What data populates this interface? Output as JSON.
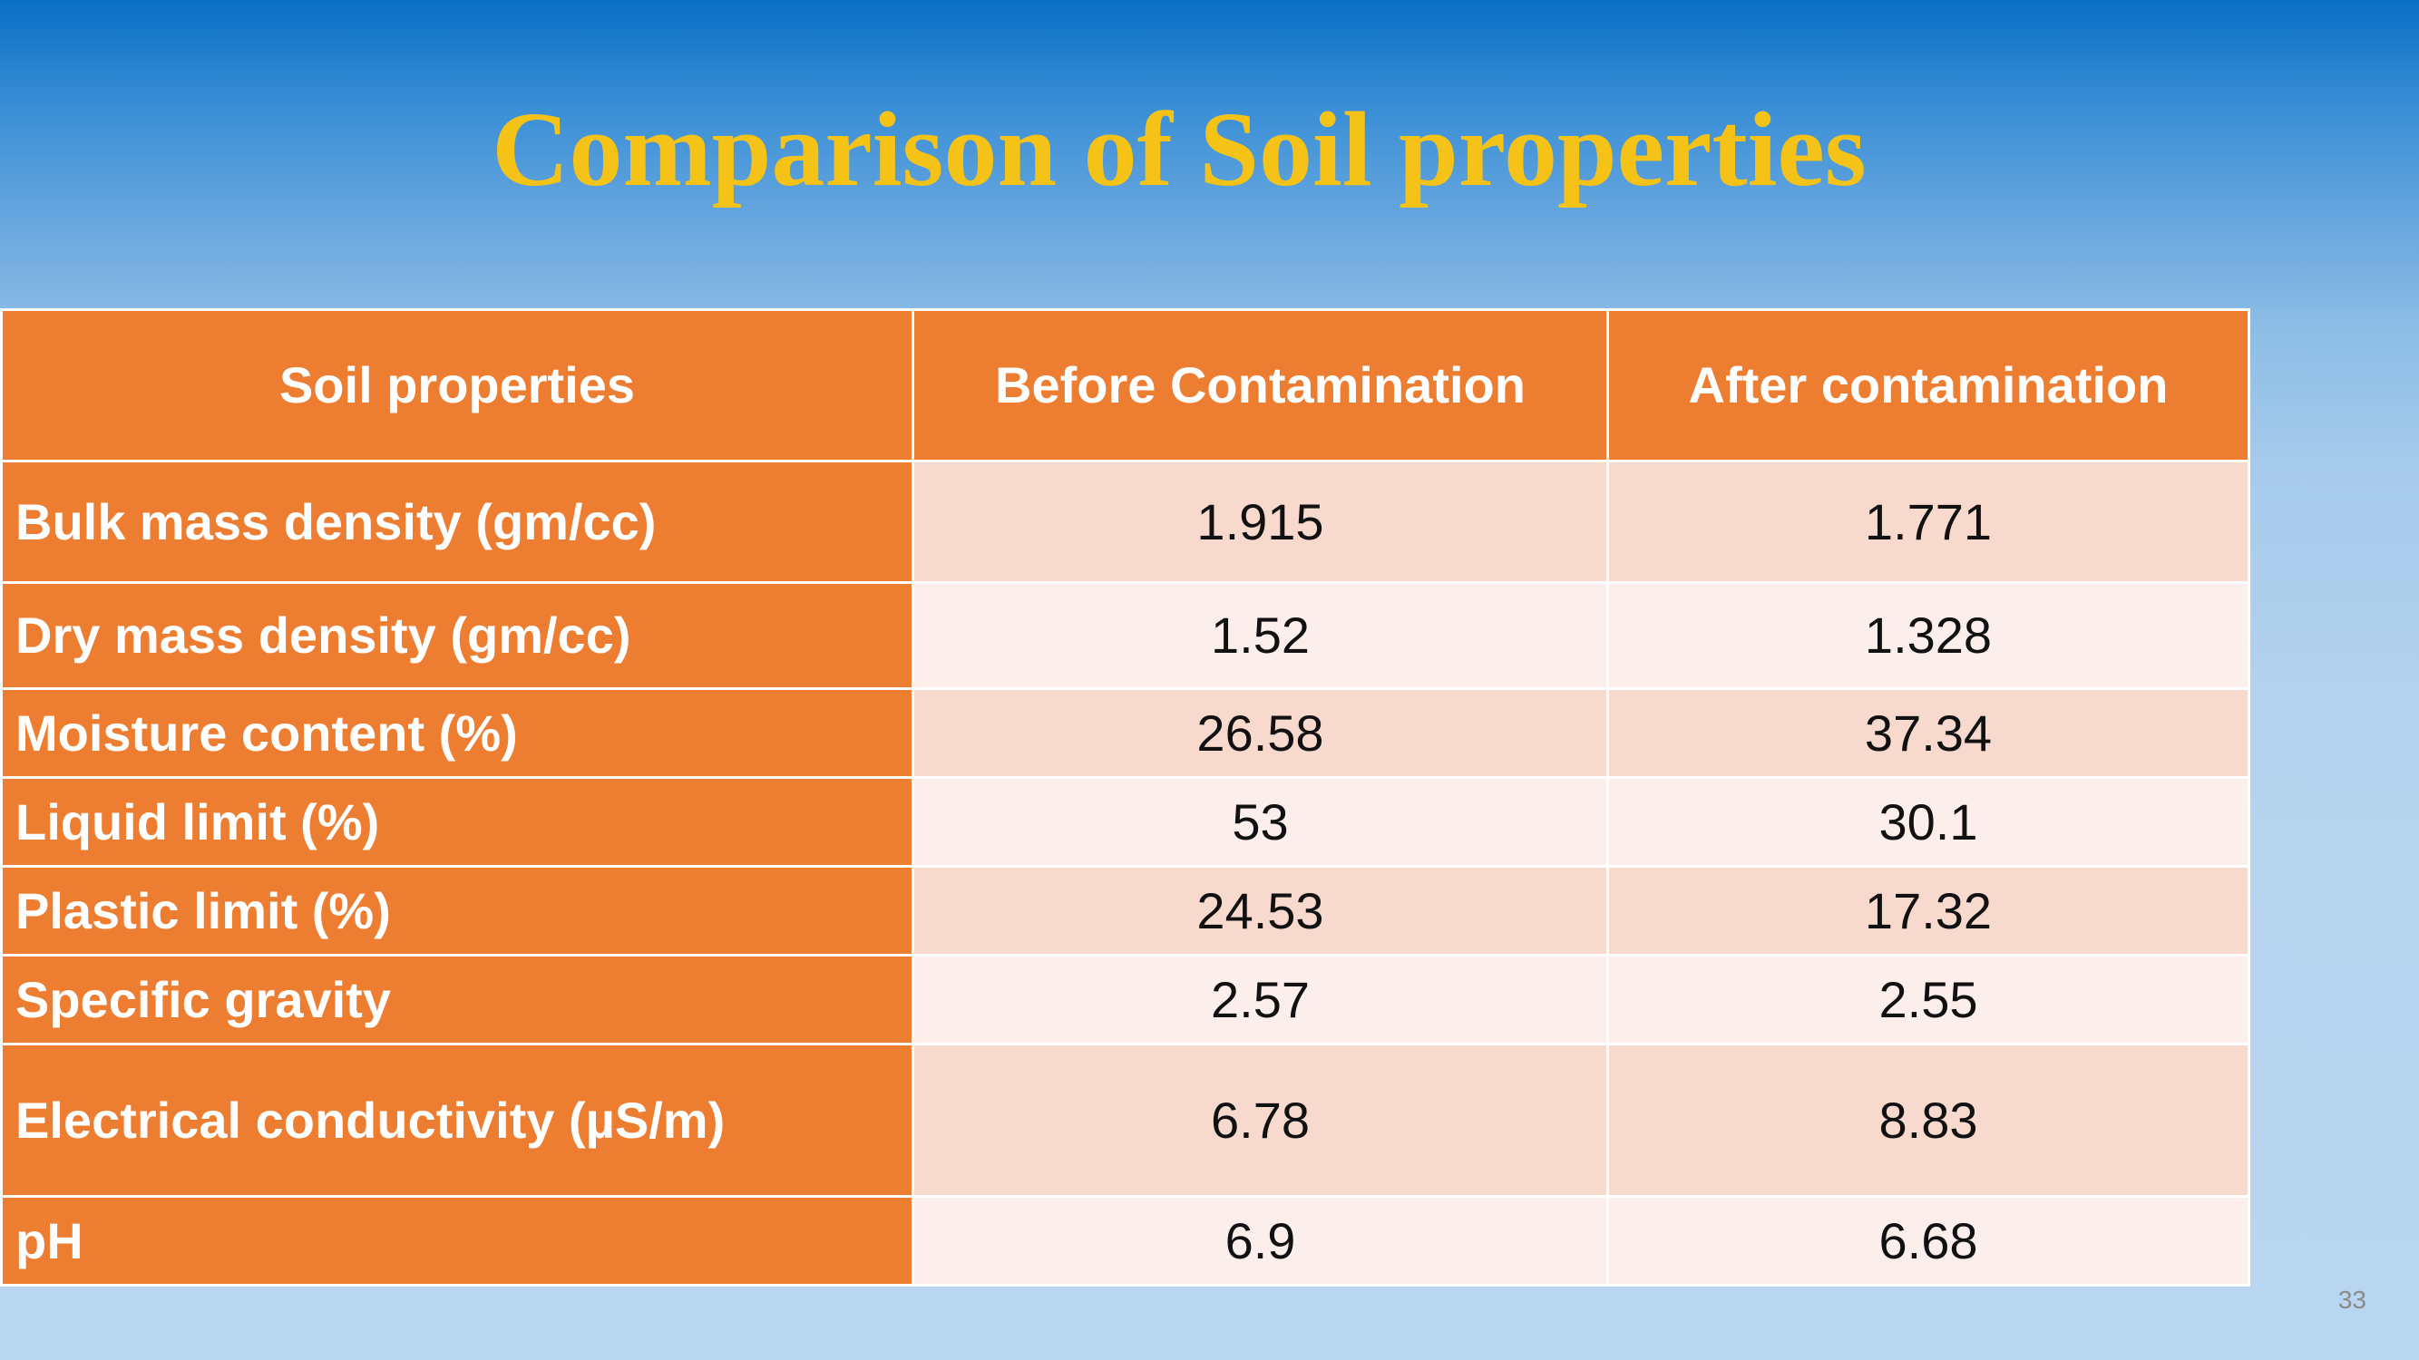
{
  "slide": {
    "title": "Comparison of Soil properties",
    "page_number": "33"
  },
  "table": {
    "headers": [
      "Soil properties",
      "Before Contamination",
      "After contamination"
    ],
    "rows": [
      {
        "property": "Bulk mass density (gm/cc)",
        "before": "1.915",
        "after": "1.771"
      },
      {
        "property": "Dry mass density (gm/cc)",
        "before": "1.52",
        "after": "1.328"
      },
      {
        "property": "Moisture content (%)",
        "before": "26.58",
        "after": "37.34"
      },
      {
        "property": "Liquid limit (%)",
        "before": "53",
        "after": "30.1"
      },
      {
        "property": "Plastic limit (%)",
        "before": "24.53",
        "after": "17.32"
      },
      {
        "property": "Specific gravity",
        "before": "2.57",
        "after": "2.55"
      },
      {
        "property": "Electrical conductivity (µS/m)",
        "before": "6.78",
        "after": "8.83"
      },
      {
        "property": "pH",
        "before": "6.9",
        "after": "6.68"
      }
    ]
  },
  "colors": {
    "title": "#f5c318",
    "header_fill": "#ed7d31",
    "row_band_dark": "#f8d9cd",
    "row_band_light": "#fceeea"
  }
}
